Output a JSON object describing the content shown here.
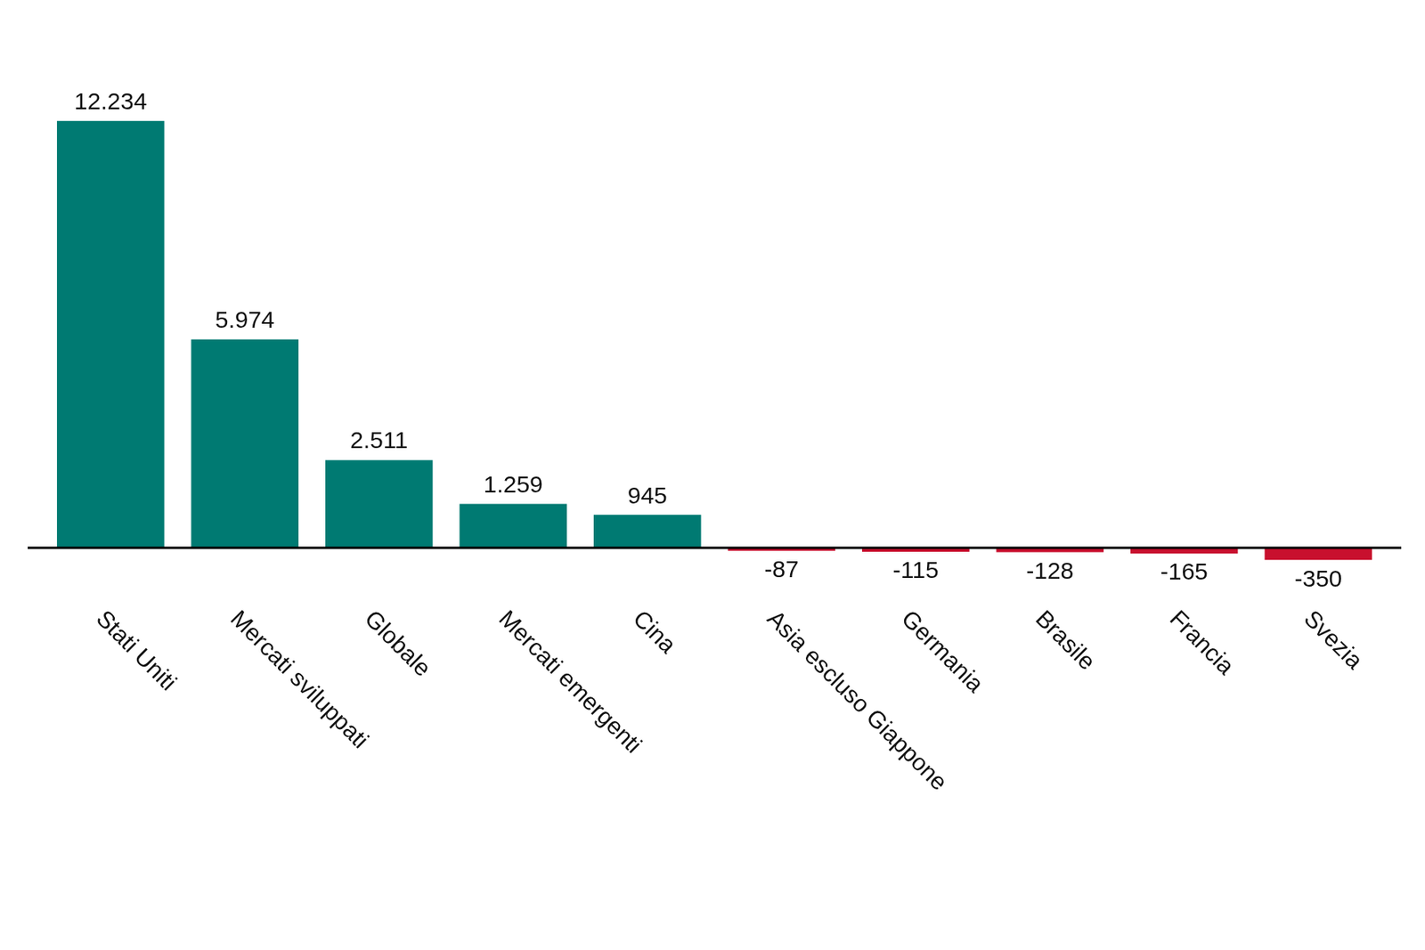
{
  "chart_data": {
    "type": "bar",
    "categories": [
      "Stati Uniti",
      "Mercati sviluppati",
      "Globale",
      "Mercati emergenti",
      "Cina",
      "Asia escluso Giappone",
      "Germania",
      "Brasile",
      "Francia",
      "Svezia"
    ],
    "values": [
      12234,
      5974,
      2511,
      1259,
      945,
      -87,
      -115,
      -128,
      -165,
      -350
    ],
    "value_labels": [
      "12.234",
      "5.974",
      "2.511",
      "1.259",
      "945",
      "-87",
      "-115",
      "-128",
      "-165",
      "-350"
    ],
    "colors": [
      "#007a72",
      "#007a72",
      "#007a72",
      "#007a72",
      "#007a72",
      "#c8102e",
      "#c8102e",
      "#c8102e",
      "#c8102e",
      "#c8102e"
    ],
    "data_labels": true,
    "tick_labels": "x",
    "grid": false
  }
}
